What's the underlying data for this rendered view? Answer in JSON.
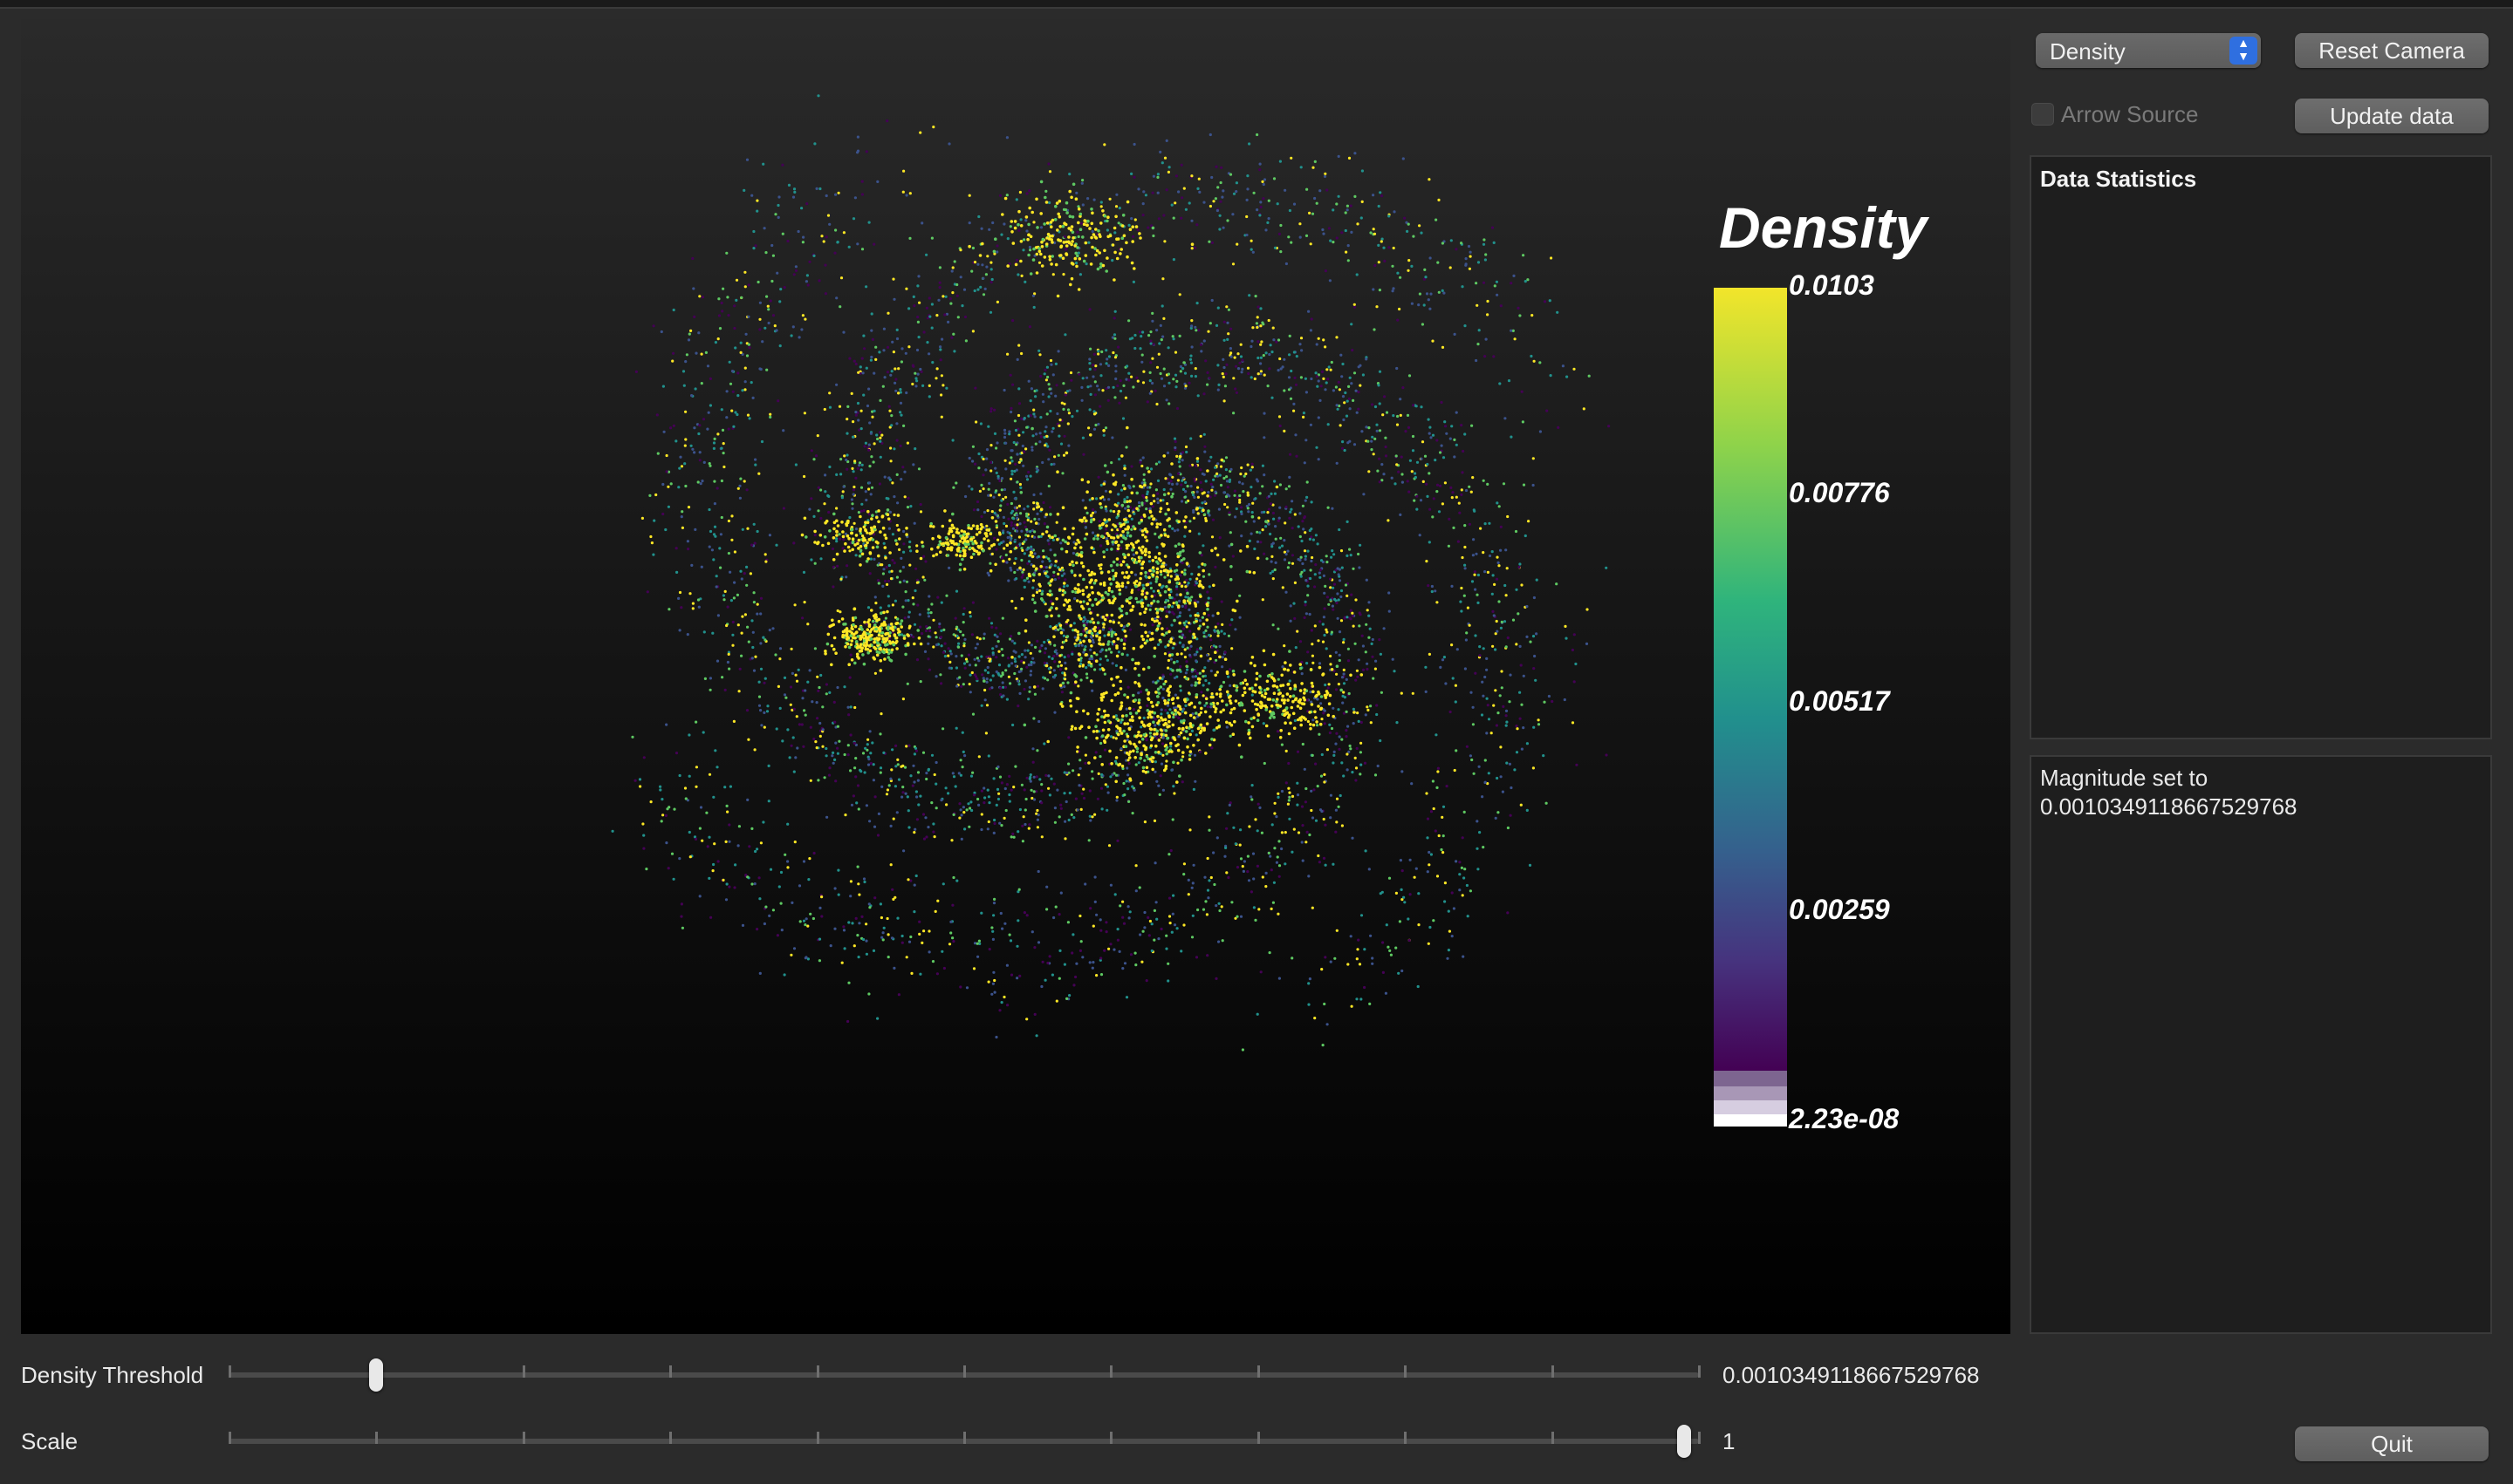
{
  "viewport": {
    "colorbar": {
      "title": "Density",
      "labels": [
        "0.0103",
        "0.00776",
        "0.00517",
        "0.00259",
        "2.23e-08"
      ]
    }
  },
  "controls": {
    "field_select": {
      "value": "Density"
    },
    "reset_camera_label": "Reset Camera",
    "arrow_source_label": "Arrow Source",
    "arrow_source_checked": false,
    "update_data_label": "Update data",
    "quit_label": "Quit"
  },
  "stats_panel": {
    "title": "Data Statistics"
  },
  "log_panel": {
    "lines": [
      "Magnitude set to",
      "0.0010349118667529768"
    ]
  },
  "sliders": {
    "density_threshold": {
      "label": "Density Threshold",
      "value_text": "0.0010349118667529768",
      "fraction": 0.1
    },
    "scale": {
      "label": "Scale",
      "value_text": "1",
      "fraction": 0.99
    }
  },
  "colors": {
    "accent_blue": "#2f6fe0",
    "viridis": [
      "#fde725",
      "#5ec962",
      "#21918c",
      "#3b528b",
      "#440154"
    ]
  }
}
